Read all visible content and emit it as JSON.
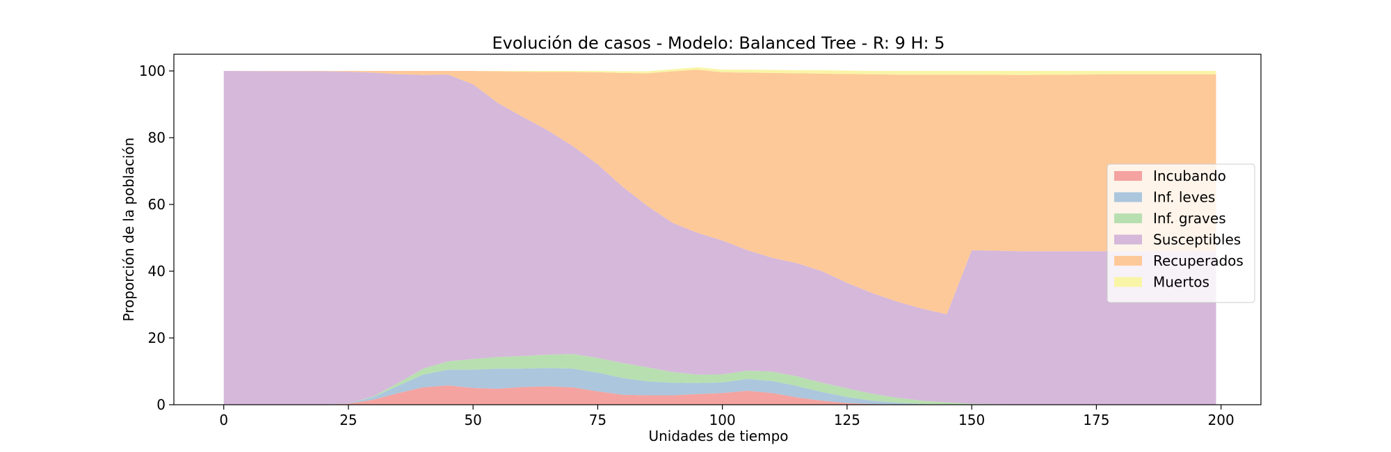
{
  "chart_data": {
    "type": "area",
    "stacked": true,
    "title": "Evolución de casos - Modelo: Balanced Tree - R: 9 H: 5",
    "xlabel": "Unidades de tiempo",
    "ylabel": "Proporción de la población",
    "xlim": [
      -10,
      208
    ],
    "ylim": [
      0,
      105
    ],
    "xticks": [
      0,
      25,
      50,
      75,
      100,
      125,
      150,
      175,
      200
    ],
    "yticks": [
      0,
      20,
      40,
      60,
      80,
      100
    ],
    "grid": false,
    "legend_position": "center-right",
    "x": [
      0,
      20,
      25,
      30,
      35,
      40,
      45,
      50,
      55,
      60,
      65,
      70,
      75,
      80,
      85,
      90,
      95,
      100,
      105,
      110,
      115,
      120,
      125,
      130,
      135,
      140,
      145,
      150,
      160,
      170,
      180,
      190,
      199
    ],
    "series": [
      {
        "name": "Incubando",
        "color": "#f4a3a0",
        "values": [
          0,
          0,
          0.3,
          1.5,
          3.5,
          5.2,
          5.8,
          5,
          4.8,
          5.3,
          5.5,
          5.2,
          4,
          3,
          2.8,
          2.8,
          3.2,
          3.5,
          4.2,
          3.5,
          2.2,
          1.2,
          0.5,
          0.2,
          0.1,
          0,
          0,
          0,
          0,
          0,
          0,
          0,
          0
        ]
      },
      {
        "name": "Inf. leves",
        "color": "#abc6dd",
        "values": [
          0,
          0,
          0.1,
          0.8,
          2.2,
          3.8,
          4.7,
          5.5,
          6,
          5.5,
          5.5,
          5.6,
          5.6,
          5,
          4.2,
          3.8,
          3.3,
          3.2,
          3.5,
          3.6,
          3.4,
          2.6,
          1.8,
          1,
          0.5,
          0.2,
          0.1,
          0,
          0,
          0,
          0,
          0,
          0
        ]
      },
      {
        "name": "Inf. graves",
        "color": "#b8dfb0",
        "values": [
          0,
          0,
          0,
          0.2,
          0.8,
          1.8,
          2.5,
          3.2,
          3.5,
          3.8,
          4,
          4.4,
          4.4,
          4.5,
          4.2,
          3.2,
          2.5,
          2.4,
          2.5,
          2.8,
          2.9,
          2.8,
          2.6,
          2.1,
          1.5,
          1,
          0.6,
          0.3,
          0,
          0,
          0,
          0,
          0
        ]
      },
      {
        "name": "Susceptibles",
        "color": "#d5b8da",
        "values": [
          100,
          99.9,
          99.4,
          97,
          92.5,
          88,
          85.9,
          82.3,
          76.1,
          71.6,
          67.2,
          62.3,
          58,
          52.8,
          48.3,
          44.7,
          42.5,
          40.1,
          36.1,
          34.1,
          33.9,
          33.4,
          31.6,
          30.2,
          28.8,
          27.6,
          26.4,
          46,
          46,
          46,
          46,
          46,
          46
        ]
      },
      {
        "name": "Recuperados",
        "color": "#fec998",
        "values": [
          0,
          0.1,
          0.2,
          0.5,
          1,
          1.2,
          1.1,
          4,
          9.5,
          13.6,
          17.5,
          22.2,
          27.6,
          34.1,
          39.8,
          45.4,
          48.9,
          50.4,
          53.2,
          55.4,
          56.9,
          59.2,
          62.6,
          65.5,
          68,
          70.1,
          71.8,
          52.6,
          52.8,
          52.9,
          53,
          53,
          53
        ]
      },
      {
        "name": "Muertos",
        "color": "#f9f5a6",
        "values": [
          0,
          0,
          0,
          0,
          0,
          0,
          0,
          0,
          0.1,
          0.2,
          0.3,
          0.3,
          0.4,
          0.5,
          0.6,
          0.6,
          0.7,
          0.8,
          0.9,
          0.9,
          0.9,
          1,
          1,
          1,
          1.1,
          1.1,
          1.1,
          1.1,
          1.2,
          1.1,
          1,
          1,
          1
        ]
      }
    ]
  }
}
